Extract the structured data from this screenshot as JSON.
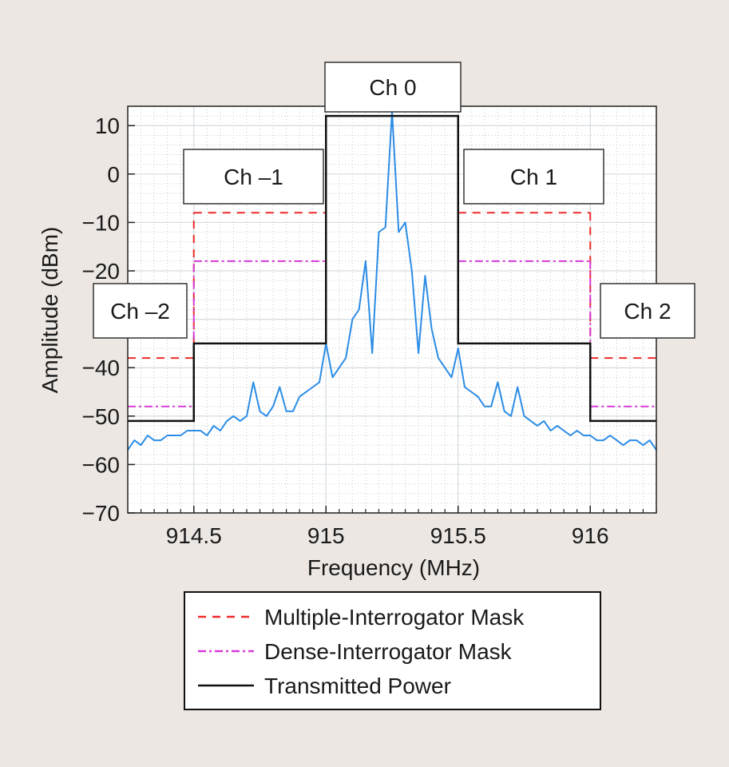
{
  "chart_data": {
    "type": "line",
    "xlabel": "Frequency (MHz)",
    "ylabel": "Amplitude (dBm)",
    "xlim": [
      914.25,
      916.25
    ],
    "ylim": [
      -70,
      14
    ],
    "xticks": [
      914.5,
      915,
      915.5,
      916
    ],
    "xtick_labels": [
      "914.5",
      "915",
      "915.5",
      "916"
    ],
    "yticks": [
      10,
      0,
      -10,
      -20,
      -30,
      -40,
      -50,
      -60,
      -70
    ],
    "ytick_labels": [
      "10",
      "0",
      "−10",
      "−20",
      "",
      "−40",
      "−50",
      "−60",
      "−70"
    ],
    "grid": true,
    "legend_placement": "bottom",
    "channels": [
      {
        "label": "Ch –2",
        "center": 914.25
      },
      {
        "label": "Ch –1",
        "center": 914.75
      },
      {
        "label": "Ch 0",
        "center": 915.25
      },
      {
        "label": "Ch 1",
        "center": 915.75
      },
      {
        "label": "Ch 2",
        "center": 916.25
      }
    ],
    "series": [
      {
        "name": "Multiple-Interrogator Mask",
        "color": "#ee2a2a",
        "style": "dashed",
        "steps": [
          [
            914.25,
            914.5,
            -38
          ],
          [
            914.5,
            915.0,
            -8
          ],
          [
            915.5,
            916.0,
            -8
          ],
          [
            916.0,
            916.25,
            -38
          ]
        ]
      },
      {
        "name": "Dense-Interrogator Mask",
        "color": "#d63ad6",
        "style": "dashdot",
        "steps": [
          [
            914.25,
            914.5,
            -48
          ],
          [
            914.5,
            915.0,
            -18
          ],
          [
            915.5,
            916.0,
            -18
          ],
          [
            916.0,
            916.25,
            -48
          ]
        ]
      },
      {
        "name": "Transmitted Power",
        "color": "#111111",
        "style": "solid",
        "steps": [
          [
            914.25,
            914.5,
            -51
          ],
          [
            914.5,
            915.0,
            -35
          ],
          [
            915.0,
            915.5,
            12
          ],
          [
            915.5,
            916.0,
            -35
          ],
          [
            916.0,
            916.25,
            -51
          ]
        ]
      }
    ],
    "spectrum": {
      "color": "#2b8ce6",
      "x_start": 914.25,
      "x_step": 0.025,
      "values": [
        -57,
        -55,
        -56,
        -54,
        -55,
        -55,
        -54,
        -54,
        -54,
        -53,
        -53,
        -53,
        -54,
        -52,
        -53,
        -51,
        -50,
        -51,
        -50,
        -43,
        -49,
        -50,
        -48,
        -44,
        -49,
        -49,
        -46,
        -45,
        -44,
        -43,
        -35,
        -42,
        -40,
        -38,
        -30,
        -28,
        -18,
        -37,
        -12,
        -11,
        13,
        -12,
        -10,
        -20,
        -37,
        -21,
        -32,
        -38,
        -40,
        -42,
        -36,
        -44,
        -45,
        -46,
        -48,
        -48,
        -43,
        -49,
        -50,
        -44,
        -50,
        -51,
        -52,
        -51,
        -53,
        -52,
        -53,
        -54,
        -53,
        -54,
        -54,
        -55,
        -55,
        -54,
        -55,
        -56,
        -55,
        -55,
        -56,
        -55,
        -57
      ]
    }
  }
}
